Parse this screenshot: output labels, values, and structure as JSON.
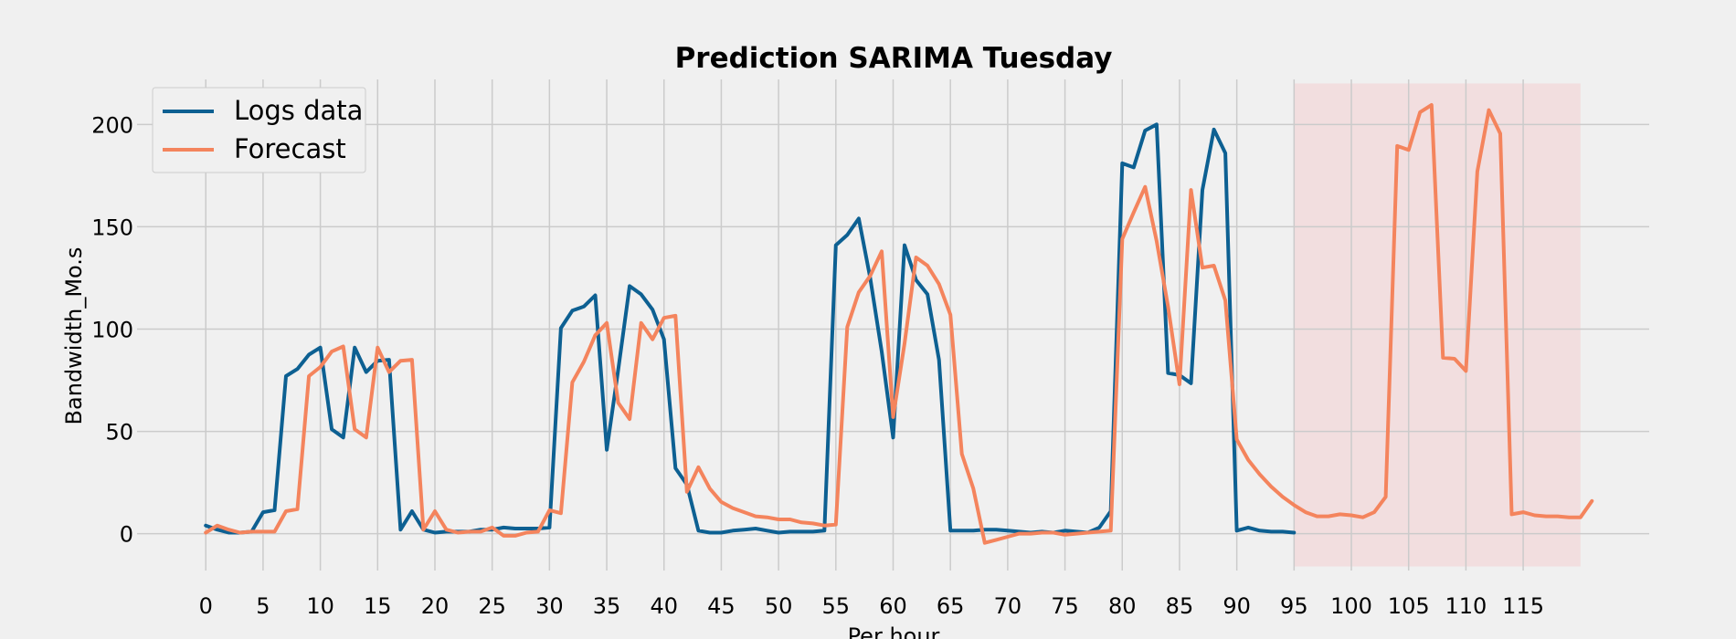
{
  "chart_data": {
    "type": "line",
    "title": "Prediction SARIMA Tuesday",
    "xlabel": "Per hour",
    "ylabel": "Bandwidth_Mo.s",
    "xlim": [
      -6,
      126
    ],
    "ylim": [
      -18,
      222
    ],
    "xticks": [
      0,
      5,
      10,
      15,
      20,
      25,
      30,
      35,
      40,
      45,
      50,
      55,
      60,
      65,
      70,
      75,
      80,
      85,
      90,
      95,
      100,
      105,
      110,
      115
    ],
    "yticks": [
      0,
      50,
      100,
      150,
      200
    ],
    "grid": true,
    "legend_position": "top-left",
    "forecast_region": {
      "x_start": 95,
      "x_end": 120,
      "y_start": -16,
      "y_end": 220,
      "color": "#f4c7c9"
    },
    "series": [
      {
        "name": "Logs data",
        "color": "#0d6092",
        "values": [
          4,
          2,
          0.5,
          0.5,
          1,
          10.5,
          11.5,
          77,
          80.5,
          87.5,
          91,
          51,
          47,
          91,
          79,
          84.5,
          85,
          2,
          11,
          2,
          0.5,
          1,
          1,
          1,
          2,
          2,
          3,
          2.5,
          2.5,
          2.5,
          3,
          100.5,
          109,
          111,
          116.5,
          41,
          80,
          121,
          117,
          109.5,
          95,
          32,
          24,
          1.5,
          0.5,
          0.5,
          1.5,
          2,
          2.5,
          1.5,
          0.5,
          1,
          1,
          1,
          1.5,
          141,
          146,
          154,
          125,
          89,
          47,
          141,
          124,
          117,
          85,
          1.5,
          1.5,
          1.5,
          2,
          2,
          1.5,
          1,
          0.5,
          1,
          0.5,
          1.5,
          1,
          0.5,
          3,
          11,
          181,
          179,
          197,
          200,
          78.5,
          77.5,
          73.5,
          168,
          197.5,
          186,
          1.5,
          3,
          1.5,
          1,
          1,
          0.5
        ]
      },
      {
        "name": "Forecast",
        "color": "#f4845d",
        "values": [
          0.5,
          4,
          2,
          0.5,
          1,
          1,
          1,
          11,
          12,
          77,
          81.5,
          89,
          91.5,
          51,
          47,
          91,
          79,
          84.5,
          85,
          2,
          11,
          2,
          0.5,
          1,
          1,
          3,
          -1,
          -1,
          0.5,
          1,
          11.5,
          10,
          74,
          84,
          97,
          103,
          64,
          56,
          103,
          95,
          105.5,
          106.5,
          20.5,
          32.5,
          22,
          15.5,
          12.5,
          10.5,
          8.5,
          8,
          7,
          7,
          5.5,
          5,
          4,
          4.5,
          101,
          118,
          126,
          138,
          57,
          93,
          135,
          131,
          122,
          107,
          39,
          22,
          -4.5,
          -3,
          -1.5,
          0,
          0,
          0.5,
          0.5,
          -0.5,
          0,
          0.5,
          1,
          1.5,
          144,
          157,
          169.5,
          143,
          111,
          73,
          168,
          130,
          131,
          114,
          46,
          36,
          29,
          23,
          18,
          14,
          10.5,
          8.5,
          8.5,
          9.5,
          9,
          8,
          10.5,
          18,
          189.5,
          187.5,
          206,
          209.5,
          86,
          85.5,
          79.5,
          177,
          207,
          195.5,
          9.5,
          10.5,
          9,
          8.5,
          8.5,
          8,
          8,
          16
        ]
      }
    ]
  }
}
